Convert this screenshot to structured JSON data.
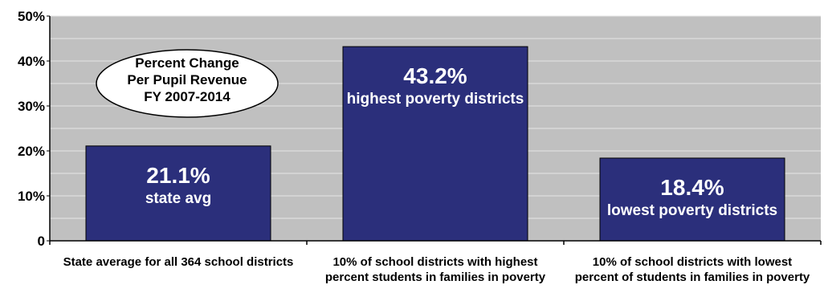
{
  "chart_data": {
    "type": "bar",
    "categories": [
      "State average for all 364 school districts",
      "10% of school districts with highest percent students in families in poverty",
      "10% of school districts with lowest percent of students in families in poverty"
    ],
    "values": [
      21.1,
      43.2,
      18.4
    ],
    "bar_labels": [
      {
        "value": "21.1%",
        "sub": "state avg"
      },
      {
        "value": "43.2%",
        "sub": "highest poverty districts"
      },
      {
        "value": "18.4%",
        "sub": "lowest poverty districts"
      }
    ],
    "yticks": [
      "0",
      "10%",
      "20%",
      "30%",
      "40%",
      "50%"
    ],
    "ylim": [
      0,
      50
    ],
    "grid": true,
    "callout": [
      "Percent Change",
      "Per Pupil Revenue",
      "FY 2007-2014"
    ],
    "colors": {
      "bar": "#2b2f7b",
      "plot_bg": "#c0c0c0",
      "grid": "#e6e6e6"
    }
  }
}
